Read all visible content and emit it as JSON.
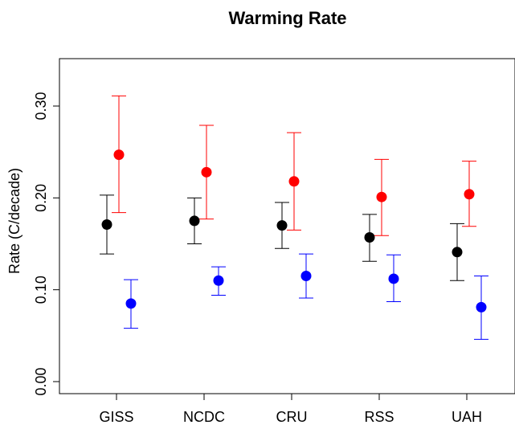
{
  "chart_data": {
    "type": "scatter",
    "title": "Warming Rate",
    "xlabel": "",
    "ylabel": "Rate (C/decade)",
    "categories": [
      "GISS",
      "NCDC",
      "CRU",
      "RSS",
      "UAH"
    ],
    "yticks": [
      0.0,
      0.1,
      0.2,
      0.3
    ],
    "ytick_labels": [
      "0.00",
      "0.10",
      "0.20",
      "0.30"
    ],
    "ylim": [
      -0.013,
      0.36
    ],
    "grid": false,
    "legend": "none",
    "series": [
      {
        "color": "#000000",
        "points": [
          {
            "category": "GISS",
            "value": 0.171,
            "low": 0.139,
            "high": 0.203
          },
          {
            "category": "NCDC",
            "value": 0.175,
            "low": 0.15,
            "high": 0.2
          },
          {
            "category": "CRU",
            "value": 0.17,
            "low": 0.145,
            "high": 0.195
          },
          {
            "category": "RSS",
            "value": 0.157,
            "low": 0.131,
            "high": 0.182
          },
          {
            "category": "UAH",
            "value": 0.141,
            "low": 0.11,
            "high": 0.172
          }
        ]
      },
      {
        "color": "#ff0000",
        "points": [
          {
            "category": "GISS",
            "value": 0.247,
            "low": 0.184,
            "high": 0.311
          },
          {
            "category": "NCDC",
            "value": 0.228,
            "low": 0.177,
            "high": 0.279
          },
          {
            "category": "CRU",
            "value": 0.218,
            "low": 0.165,
            "high": 0.271
          },
          {
            "category": "RSS",
            "value": 0.201,
            "low": 0.159,
            "high": 0.242
          },
          {
            "category": "UAH",
            "value": 0.204,
            "low": 0.169,
            "high": 0.24
          }
        ]
      },
      {
        "color": "#0000ff",
        "points": [
          {
            "category": "GISS",
            "value": 0.085,
            "low": 0.058,
            "high": 0.111
          },
          {
            "category": "NCDC",
            "value": 0.11,
            "low": 0.094,
            "high": 0.125
          },
          {
            "category": "CRU",
            "value": 0.115,
            "low": 0.091,
            "high": 0.139
          },
          {
            "category": "RSS",
            "value": 0.112,
            "low": 0.087,
            "high": 0.138
          },
          {
            "category": "UAH",
            "value": 0.081,
            "low": 0.046,
            "high": 0.115
          }
        ]
      }
    ]
  }
}
